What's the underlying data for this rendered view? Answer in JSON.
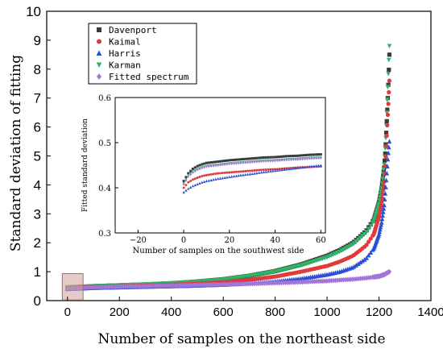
{
  "chart_data": [
    {
      "type": "scatter",
      "xlabel": "Number of samples on the northeast side",
      "ylabel": "Standard deviation of fitting",
      "xlim": [
        -80,
        1400
      ],
      "ylim": [
        0,
        10
      ],
      "xticks": [
        0,
        200,
        400,
        600,
        800,
        1000,
        1200,
        1400
      ],
      "yticks": [
        0,
        1,
        2,
        3,
        4,
        5,
        6,
        7,
        8,
        9,
        10
      ],
      "legend": {
        "placement": "top-left"
      },
      "highlight_box": {
        "x": [
          -20,
          60
        ],
        "y": [
          0.3,
          0.6
        ]
      },
      "series": [
        {
          "name": "Davenport",
          "marker": "square",
          "color": "#3a3a3a",
          "x": [
            0,
            100,
            200,
            300,
            400,
            500,
            600,
            700,
            800,
            900,
            1000,
            1050,
            1100,
            1150,
            1180,
            1200,
            1210,
            1220,
            1225,
            1230,
            1235,
            1240
          ],
          "y": [
            0.45,
            0.5,
            0.53,
            0.56,
            0.6,
            0.66,
            0.74,
            0.86,
            1.02,
            1.25,
            1.55,
            1.75,
            2.0,
            2.4,
            2.8,
            3.4,
            3.9,
            4.6,
            5.2,
            6.2,
            7.2,
            8.5
          ]
        },
        {
          "name": "Kaimal",
          "marker": "circle",
          "color": "#e03a3a",
          "x": [
            0,
            100,
            200,
            300,
            400,
            500,
            600,
            700,
            800,
            900,
            1000,
            1050,
            1100,
            1150,
            1180,
            1200,
            1210,
            1220,
            1225,
            1230,
            1235,
            1240
          ],
          "y": [
            0.44,
            0.48,
            0.5,
            0.52,
            0.55,
            0.59,
            0.64,
            0.72,
            0.83,
            1.0,
            1.2,
            1.35,
            1.55,
            1.9,
            2.3,
            2.9,
            3.4,
            4.1,
            4.8,
            5.7,
            6.6,
            7.6
          ]
        },
        {
          "name": "Harris",
          "marker": "triangle-up",
          "color": "#2b4fd6",
          "x": [
            0,
            100,
            200,
            300,
            400,
            500,
            600,
            700,
            800,
            900,
            1000,
            1050,
            1100,
            1150,
            1180,
            1200,
            1210,
            1220,
            1225,
            1230,
            1235,
            1240
          ],
          "y": [
            0.4,
            0.44,
            0.46,
            0.48,
            0.5,
            0.52,
            0.55,
            0.6,
            0.66,
            0.76,
            0.9,
            1.0,
            1.15,
            1.45,
            1.8,
            2.3,
            2.7,
            3.3,
            3.8,
            4.4,
            5.0,
            5.5
          ]
        },
        {
          "name": "Karman",
          "marker": "triangle-down",
          "color": "#2fb56a",
          "x": [
            0,
            100,
            200,
            300,
            400,
            500,
            600,
            700,
            800,
            900,
            1000,
            1050,
            1100,
            1150,
            1180,
            1200,
            1210,
            1220,
            1225,
            1230,
            1235,
            1240
          ],
          "y": [
            0.46,
            0.5,
            0.53,
            0.56,
            0.6,
            0.65,
            0.73,
            0.85,
            1.0,
            1.22,
            1.5,
            1.7,
            1.95,
            2.35,
            2.75,
            3.35,
            3.9,
            4.7,
            5.4,
            6.5,
            7.6,
            8.8
          ]
        },
        {
          "name": "Fitted spectrum",
          "marker": "diamond",
          "color": "#a276d8",
          "x": [
            0,
            100,
            200,
            300,
            400,
            500,
            600,
            700,
            800,
            900,
            1000,
            1100,
            1150,
            1200,
            1220,
            1240
          ],
          "y": [
            0.42,
            0.46,
            0.48,
            0.5,
            0.52,
            0.54,
            0.56,
            0.58,
            0.61,
            0.64,
            0.68,
            0.74,
            0.78,
            0.84,
            0.9,
            1.0
          ]
        }
      ]
    },
    {
      "type": "scatter",
      "xlabel": "Number of samples on the southwest side",
      "ylabel": "Fitted standard deviation",
      "xlim": [
        -30,
        62
      ],
      "ylim": [
        0.3,
        0.6
      ],
      "xticks": [
        -20,
        0,
        20,
        40,
        60
      ],
      "yticks": [
        0.3,
        0.4,
        0.5,
        0.6
      ],
      "series": [
        {
          "name": "Davenport",
          "color": "#3a3a3a",
          "x": [
            0,
            2,
            4,
            6,
            8,
            10,
            15,
            20,
            25,
            30,
            35,
            40,
            45,
            50,
            55,
            60
          ],
          "y": [
            0.415,
            0.432,
            0.442,
            0.448,
            0.452,
            0.455,
            0.458,
            0.461,
            0.463,
            0.465,
            0.467,
            0.468,
            0.47,
            0.471,
            0.473,
            0.474
          ]
        },
        {
          "name": "Kaimal",
          "color": "#e03a3a",
          "x": [
            0,
            2,
            4,
            6,
            8,
            10,
            15,
            20,
            25,
            30,
            35,
            40,
            45,
            50,
            55,
            60
          ],
          "y": [
            0.4,
            0.412,
            0.418,
            0.422,
            0.426,
            0.428,
            0.432,
            0.434,
            0.436,
            0.438,
            0.44,
            0.441,
            0.443,
            0.445,
            0.446,
            0.447
          ]
        },
        {
          "name": "Harris",
          "color": "#2b4fd6",
          "x": [
            0,
            2,
            4,
            6,
            8,
            10,
            15,
            20,
            25,
            30,
            35,
            40,
            45,
            50,
            55,
            60
          ],
          "y": [
            0.39,
            0.398,
            0.404,
            0.408,
            0.412,
            0.415,
            0.42,
            0.424,
            0.428,
            0.431,
            0.435,
            0.438,
            0.441,
            0.444,
            0.447,
            0.45
          ]
        },
        {
          "name": "Karman",
          "color": "#2fb56a",
          "x": [
            0,
            2,
            4,
            6,
            8,
            10,
            15,
            20,
            25,
            30,
            35,
            40,
            45,
            50,
            55,
            60
          ],
          "y": [
            0.41,
            0.428,
            0.436,
            0.441,
            0.445,
            0.448,
            0.451,
            0.454,
            0.456,
            0.458,
            0.46,
            0.461,
            0.463,
            0.464,
            0.466,
            0.467
          ]
        },
        {
          "name": "Fitted spectrum",
          "color": "#a276d8",
          "x": [
            0,
            2,
            4,
            6,
            8,
            10,
            15,
            20,
            25,
            30,
            35,
            40,
            45,
            50,
            55,
            60
          ],
          "y": [
            0.408,
            0.425,
            0.434,
            0.44,
            0.444,
            0.447,
            0.45,
            0.453,
            0.455,
            0.457,
            0.459,
            0.46,
            0.462,
            0.463,
            0.465,
            0.466
          ]
        }
      ]
    }
  ]
}
